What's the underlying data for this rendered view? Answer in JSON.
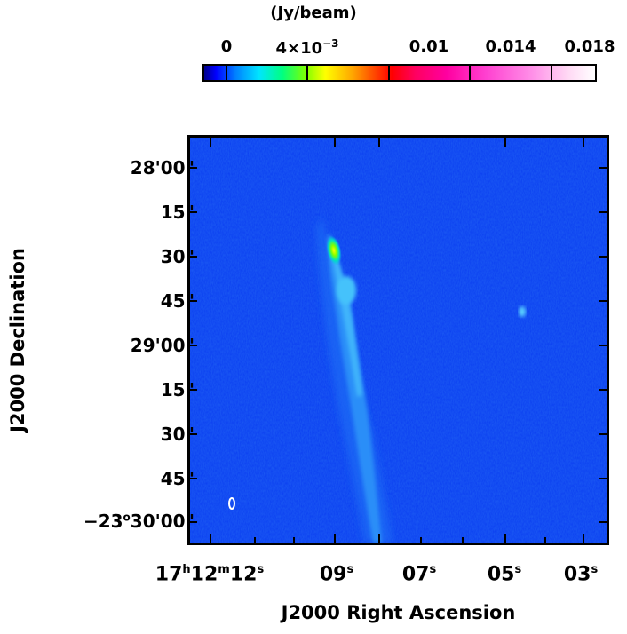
{
  "colorbar": {
    "unit_label": "(Jy/beam)",
    "ticks": [
      {
        "text": "0",
        "value": 0
      },
      {
        "text": "4×10",
        "exp": "−3",
        "value": 0.004
      },
      {
        "text": "0.01",
        "value": 0.01
      },
      {
        "text": "0.014",
        "value": 0.014
      },
      {
        "text": "0.018",
        "value": 0.018
      }
    ],
    "range": [
      0,
      0.019
    ],
    "colormap": [
      "#00008b",
      "#0000ff",
      "#00e5ff",
      "#00ff80",
      "#ffff00",
      "#ff0000",
      "#ff00a0",
      "#ffffff"
    ]
  },
  "axes": {
    "x_title": "J2000 Right Ascension",
    "y_title": "J2000 Declination",
    "x_ticks": [
      {
        "main": "17",
        "parts": [
          [
            "h",
            "12"
          ],
          [
            "m",
            "12"
          ],
          [
            "s",
            ""
          ]
        ],
        "label": "17h12m12s"
      },
      {
        "main": "09",
        "parts": [
          [
            "s",
            ""
          ]
        ],
        "label": "09s"
      },
      {
        "main": "07",
        "parts": [
          [
            "s",
            ""
          ]
        ],
        "label": "07s"
      },
      {
        "main": "05",
        "parts": [
          [
            "s",
            ""
          ]
        ],
        "label": "05s"
      },
      {
        "main": "03",
        "parts": [
          [
            "s",
            ""
          ]
        ],
        "label": "03s"
      }
    ],
    "y_ticks": [
      {
        "text": "28'00\""
      },
      {
        "text": "15\""
      },
      {
        "text": "30\""
      },
      {
        "text": "45\""
      },
      {
        "text": "29'00\""
      },
      {
        "text": "15\""
      },
      {
        "text": "30\""
      },
      {
        "text": "45\""
      },
      {
        "text": "−23",
        "sup": "o",
        "rest": "30'00\""
      }
    ]
  },
  "image": {
    "background_color": "#0a3df0",
    "features": [
      "elongated jet-like emission",
      "bright compact knot",
      "faint point source",
      "beam ellipse"
    ]
  }
}
